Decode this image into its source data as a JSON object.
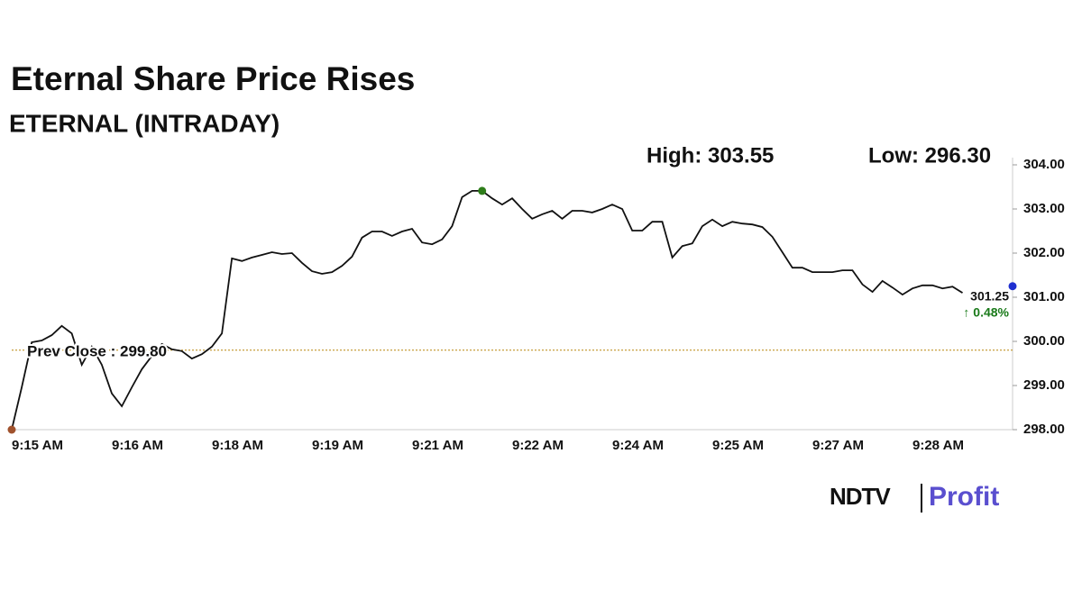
{
  "chart_data": {
    "type": "line",
    "title": "Eternal Share Price Rises",
    "subtitle": "ETERNAL (INTRADAY)",
    "high_label": "High: 303.55",
    "low_label": "Low: 296.30",
    "prev_close": {
      "value": 299.8,
      "label": "Prev Close : 299.80"
    },
    "last_label": "301.25",
    "change_label": "↑ 0.48%",
    "color": "#111111",
    "prev_close_color": "#b8860b",
    "change_color": "#1a7a1a",
    "markers": [
      {
        "at": 0,
        "color": "#a0522d"
      },
      {
        "at": 47,
        "color": "#2e7d1a"
      },
      {
        "at": 100,
        "color": "#1f2fd0"
      }
    ],
    "categories": [
      "9:15 AM",
      null,
      null,
      null,
      null,
      null,
      null,
      null,
      null,
      null,
      "9:16 AM",
      null,
      null,
      null,
      null,
      null,
      null,
      null,
      null,
      null,
      "9:18 AM",
      null,
      null,
      null,
      null,
      null,
      null,
      null,
      null,
      null,
      "9:19 AM",
      null,
      null,
      null,
      null,
      null,
      null,
      null,
      null,
      null,
      "9:21 AM",
      null,
      null,
      null,
      null,
      null,
      null,
      null,
      null,
      null,
      "9:22 AM",
      null,
      null,
      null,
      null,
      null,
      null,
      null,
      null,
      null,
      "9:24 AM",
      null,
      null,
      null,
      null,
      null,
      null,
      null,
      null,
      null,
      "9:25 AM",
      null,
      null,
      null,
      null,
      null,
      null,
      null,
      null,
      null,
      "9:27 AM",
      null,
      null,
      null,
      null,
      null,
      null,
      null,
      null,
      null,
      "9:28 AM",
      null,
      null,
      null,
      null,
      null,
      null,
      null,
      null,
      null,
      null
    ],
    "values": [
      298.0,
      298.96,
      299.98,
      300.02,
      300.14,
      300.35,
      300.18,
      299.47,
      299.88,
      299.47,
      298.82,
      298.53,
      298.96,
      299.37,
      299.67,
      299.94,
      299.82,
      299.78,
      299.61,
      299.71,
      299.88,
      300.18,
      301.88,
      301.82,
      301.9,
      301.96,
      302.02,
      301.98,
      302.0,
      301.78,
      301.59,
      301.53,
      301.57,
      301.71,
      301.92,
      302.35,
      302.49,
      302.49,
      302.39,
      302.49,
      302.55,
      302.24,
      302.2,
      302.31,
      302.61,
      303.27,
      303.41,
      303.41,
      303.24,
      303.1,
      303.24,
      303.0,
      302.78,
      302.88,
      302.96,
      302.78,
      302.96,
      302.96,
      302.92,
      303.0,
      303.1,
      303.0,
      302.51,
      302.51,
      302.71,
      302.71,
      301.9,
      302.16,
      302.22,
      302.61,
      302.76,
      302.61,
      302.71,
      302.67,
      302.65,
      302.59,
      302.37,
      302.02,
      301.67,
      301.67,
      301.57,
      301.57,
      301.57,
      301.61,
      301.61,
      301.29,
      301.12,
      301.37,
      301.22,
      301.06,
      301.2,
      301.27,
      301.27,
      301.2,
      301.24,
      301.1,
      null,
      null,
      null,
      null,
      301.25
    ],
    "ylim": [
      298.0,
      304.0
    ],
    "yticks": [
      {
        "value": 298,
        "label": "298.00"
      },
      {
        "value": 299,
        "label": "299.00"
      },
      {
        "value": 300,
        "label": "300.00"
      },
      {
        "value": 301,
        "label": "301.00"
      },
      {
        "value": 302,
        "label": "302.00"
      },
      {
        "value": 303,
        "label": "303.00"
      },
      {
        "value": 304,
        "label": "304.00"
      }
    ]
  },
  "brand": {
    "left": "NDTV",
    "right": "Profit"
  }
}
